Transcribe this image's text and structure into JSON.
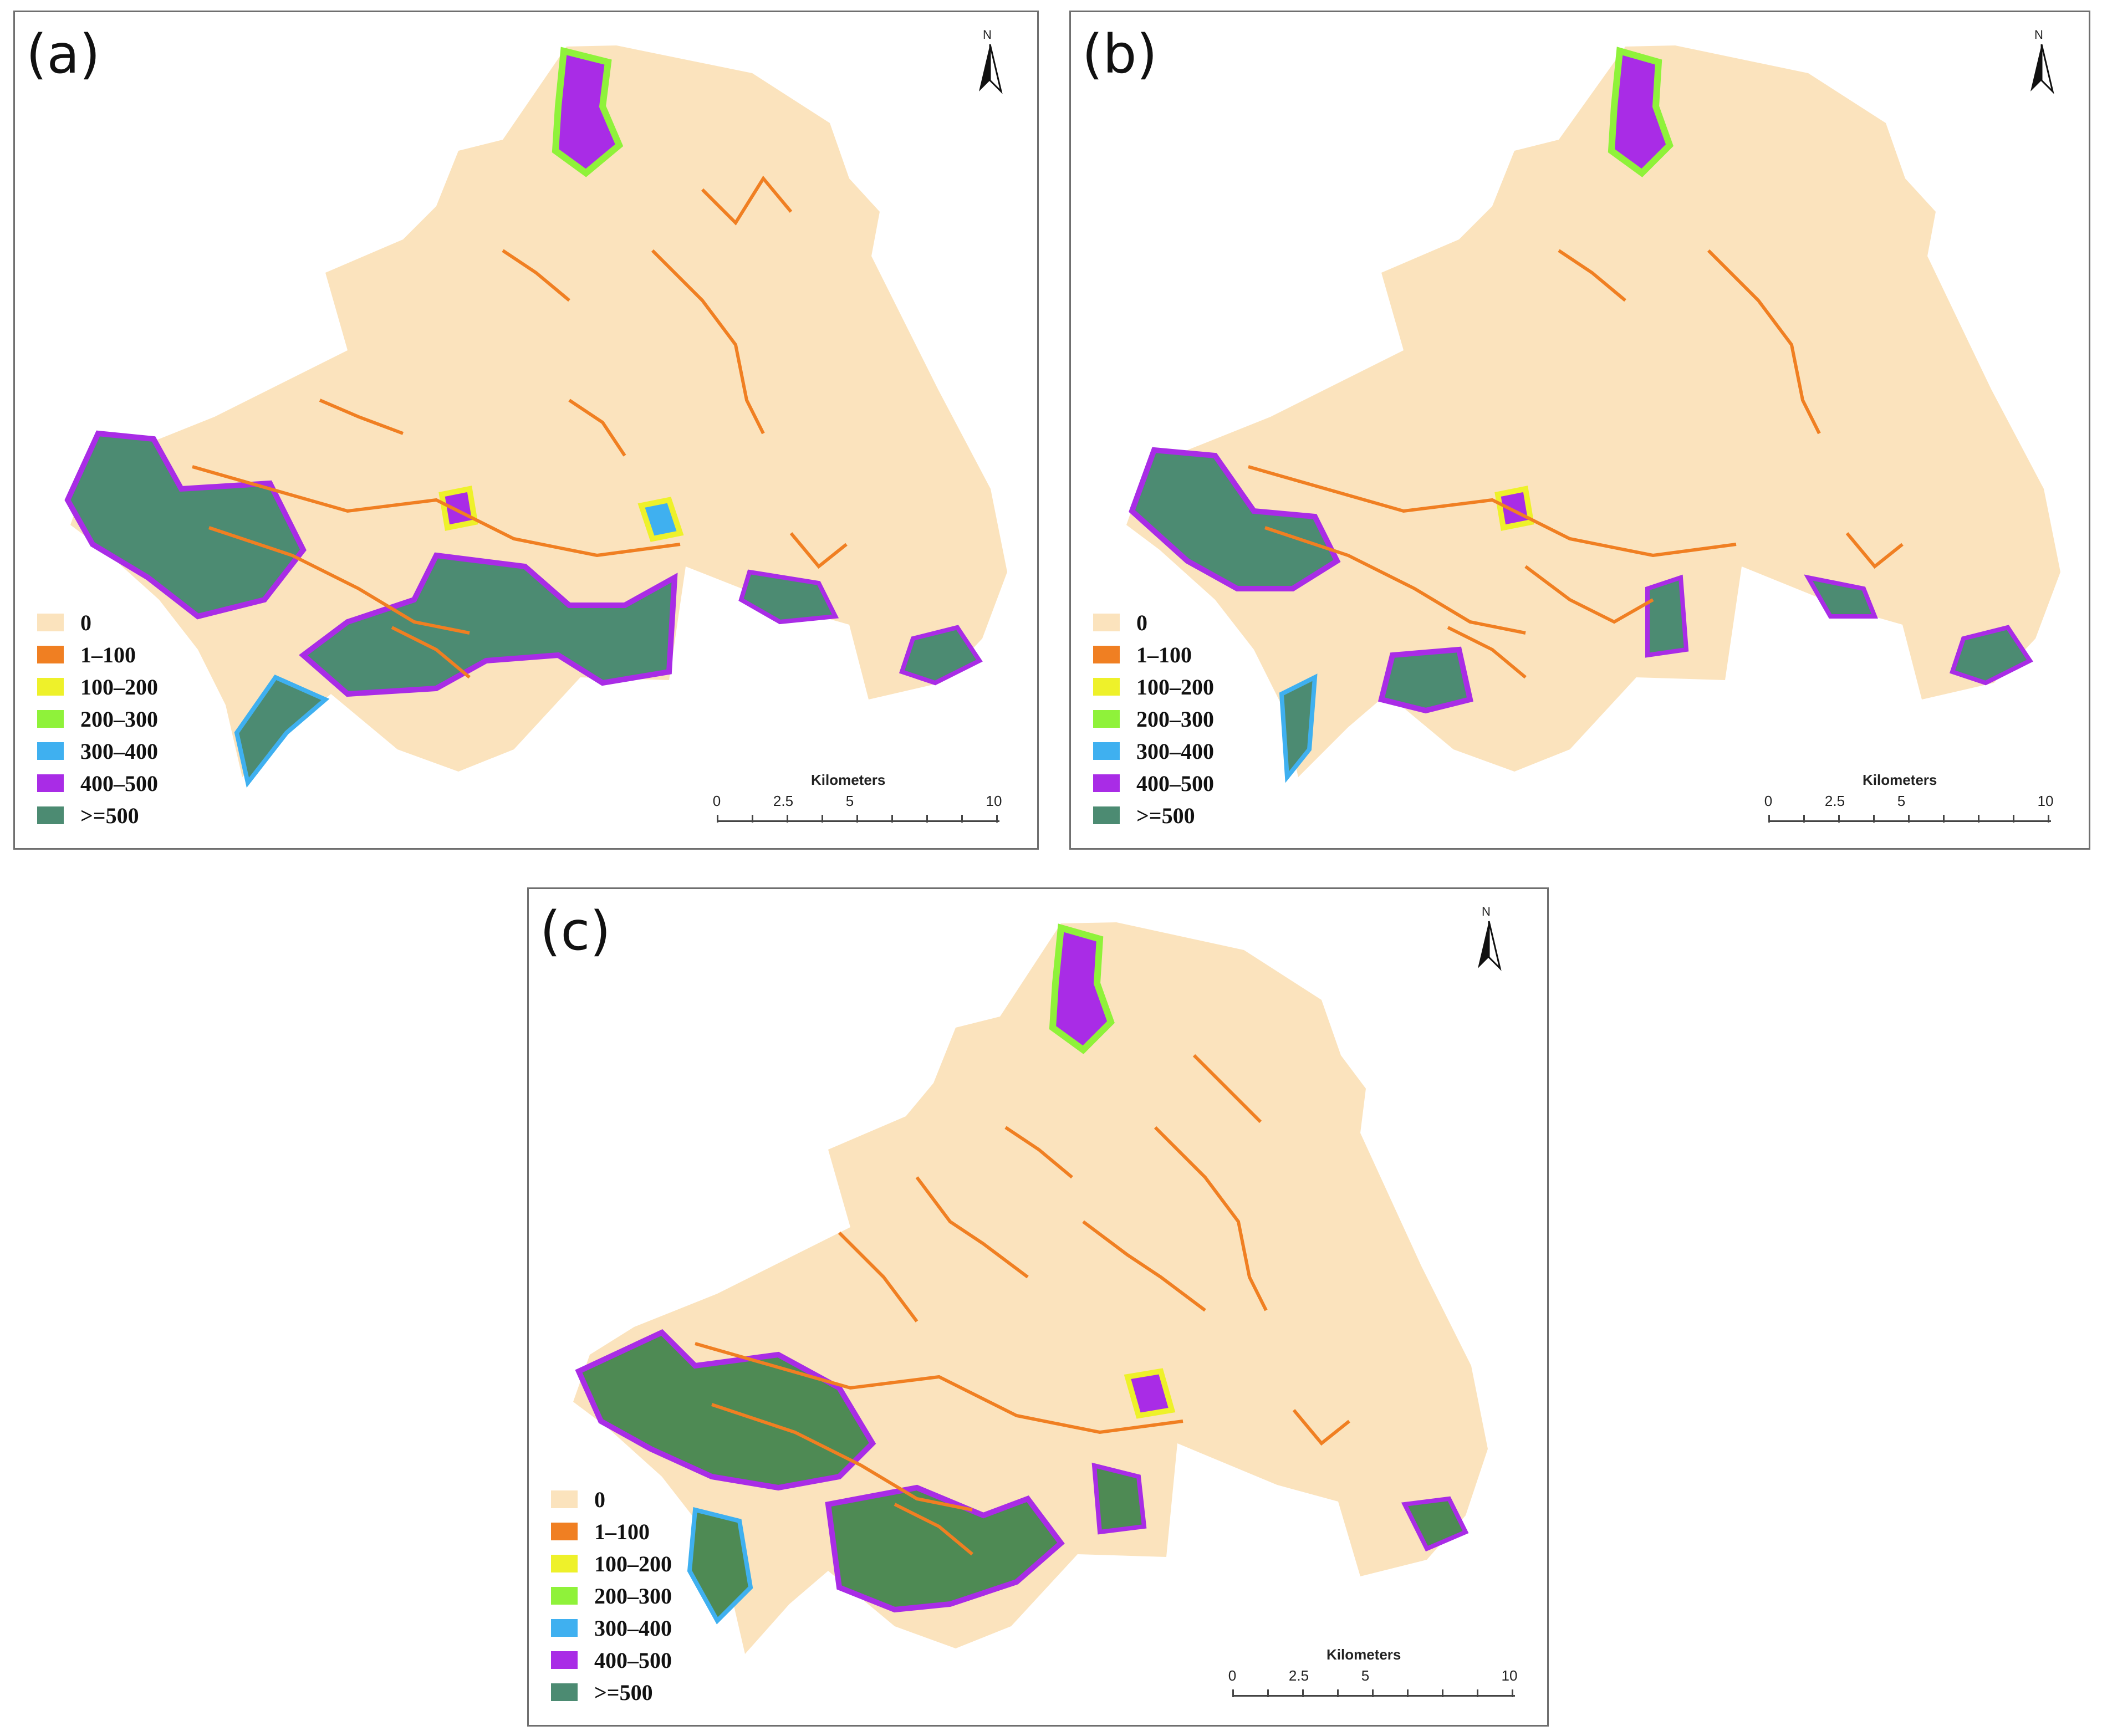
{
  "colors": {
    "c0": "#fbe3bd",
    "c1": "#f07f22",
    "c2": "#eef12a",
    "c3": "#8ff23a",
    "c4": "#3fb0f0",
    "c5": "#a92ce6",
    "c6": "#4c8b72",
    "c6c": "#4e8a54"
  },
  "legend": [
    {
      "label": "0",
      "color": "#fbe3bd"
    },
    {
      "label": "1–100",
      "color": "#f07f22"
    },
    {
      "label": "100–200",
      "color": "#eef12a"
    },
    {
      "label": "200–300",
      "color": "#8ff23a"
    },
    {
      "label": "300–400",
      "color": "#3fb0f0"
    },
    {
      "label": "400–500",
      "color": "#a92ce6"
    },
    {
      "label": ">=500",
      "color": "#4c8b72"
    }
  ],
  "panels": [
    {
      "id": "a",
      "label": "(a)"
    },
    {
      "id": "b",
      "label": "(b)"
    },
    {
      "id": "c",
      "label": "(c)"
    }
  ],
  "scale": {
    "title": "Kilometers",
    "ticks": [
      "0",
      "2.5",
      "5",
      "10"
    ]
  },
  "north": "N"
}
